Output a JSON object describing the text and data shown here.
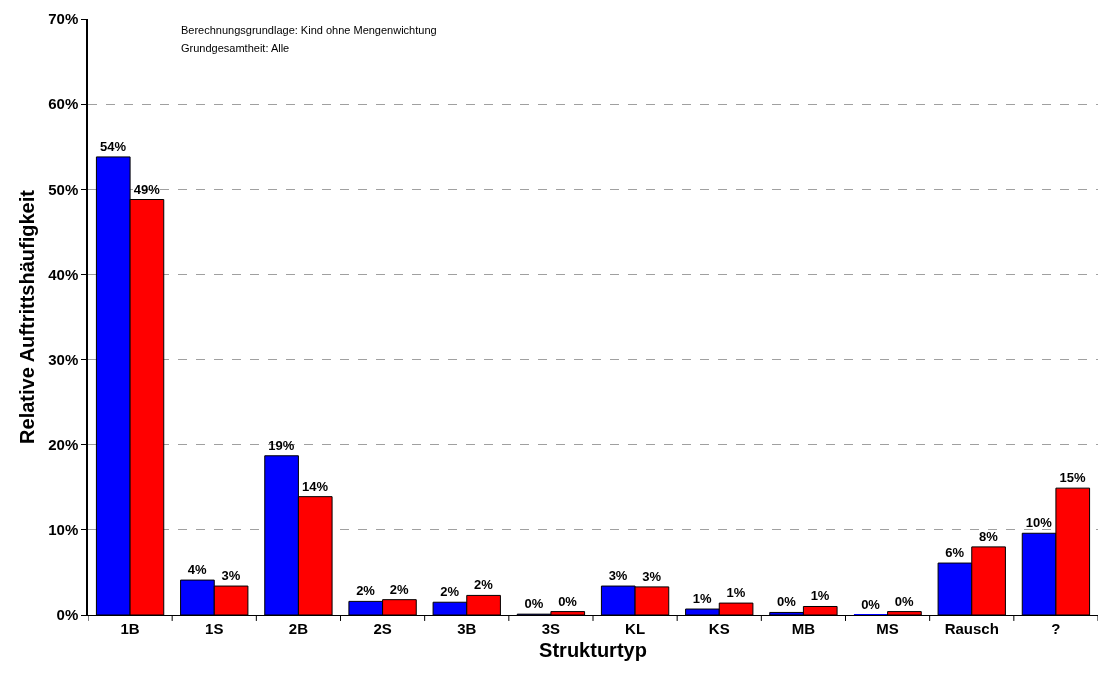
{
  "chart_data": {
    "type": "bar",
    "xlabel": "Strukturtyp",
    "ylabel": "Relative Auftrittshäufigkeit",
    "annotations": [
      "Berechnungsgrundlage: Kind ohne Mengenwichtung",
      "Grundgesamtheit: Alle"
    ],
    "categories": [
      "1B",
      "1S",
      "2B",
      "2S",
      "3B",
      "3S",
      "KL",
      "KS",
      "MB",
      "MS",
      "Rausch",
      "?"
    ],
    "series": [
      {
        "color": "#0000ff",
        "values": [
          53.8,
          4.1,
          18.7,
          1.6,
          1.5,
          0.1,
          3.4,
          0.7,
          0.3,
          0.0,
          6.1,
          9.6
        ],
        "value_labels": [
          "54%",
          "4%",
          "19%",
          "2%",
          "2%",
          "0%",
          "3%",
          "1%",
          "0%",
          "0%",
          "6%",
          "10%"
        ]
      },
      {
        "color": "#ff0000",
        "values": [
          48.8,
          3.4,
          13.9,
          1.8,
          2.3,
          0.4,
          3.3,
          1.4,
          1.0,
          0.4,
          8.0,
          14.9
        ],
        "value_labels": [
          "49%",
          "3%",
          "14%",
          "2%",
          "2%",
          "0%",
          "3%",
          "1%",
          "1%",
          "0%",
          "8%",
          "15%"
        ]
      }
    ],
    "ylim": [
      0,
      70
    ],
    "yticks": [
      {
        "value": 0,
        "label": "0%"
      },
      {
        "value": 10,
        "label": "10%"
      },
      {
        "value": 20,
        "label": "20%"
      },
      {
        "value": 30,
        "label": "30%"
      },
      {
        "value": 40,
        "label": "40%"
      },
      {
        "value": 50,
        "label": "50%"
      },
      {
        "value": 60,
        "label": "60%"
      },
      {
        "value": 70,
        "label": "70%"
      }
    ],
    "grid": "y"
  }
}
